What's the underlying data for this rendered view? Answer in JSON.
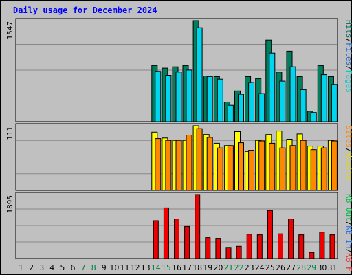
{
  "chart_data": {
    "type": "bar",
    "title": "Daily usage for December 2024",
    "categories": [
      "1",
      "2",
      "3",
      "4",
      "5",
      "6",
      "7",
      "8",
      "9",
      "10",
      "11",
      "12",
      "13",
      "14",
      "15",
      "16",
      "17",
      "18",
      "19",
      "20",
      "21",
      "22",
      "23",
      "24",
      "25",
      "26",
      "27",
      "28",
      "29",
      "30",
      "31"
    ],
    "weekend_days": [
      "7",
      "8",
      "14",
      "15",
      "21",
      "22",
      "28",
      "29"
    ],
    "panels": [
      {
        "name": "hits-files-pages",
        "max_label": "1547",
        "ymax": 1547,
        "legend": [
          "Pages",
          "/",
          "Files",
          "/",
          "Hits"
        ],
        "legend_colors": [
          "#00cccc",
          "#000000",
          "#2266cc",
          "#000000",
          "#006f5a"
        ],
        "series": [
          {
            "name": "Hits",
            "color": "#007f5f",
            "values": [
              0,
              0,
              0,
              0,
              0,
              0,
              0,
              0,
              0,
              0,
              0,
              0,
              0,
              860,
              820,
              840,
              860,
              1547,
              700,
              690,
              300,
              470,
              690,
              660,
              1250,
              760,
              1080,
              690,
              160,
              860,
              690
            ]
          },
          {
            "name": "Files",
            "color": "#00d4ee",
            "values": [
              0,
              0,
              0,
              0,
              0,
              0,
              0,
              0,
              0,
              0,
              0,
              0,
              0,
              770,
              710,
              760,
              790,
              1440,
              690,
              650,
              250,
              420,
              600,
              430,
              1050,
              620,
              840,
              490,
              140,
              720,
              570
            ]
          }
        ]
      },
      {
        "name": "visits-sites",
        "max_label": "111",
        "ymax": 111,
        "legend": [
          "Visits",
          "/",
          "Sites"
        ],
        "legend_colors": [
          "#dddd00",
          "#000000",
          "#ff8800"
        ],
        "series": [
          {
            "name": "Visits",
            "color": "#ffff00",
            "values": [
              0,
              0,
              0,
              0,
              0,
              0,
              0,
              0,
              0,
              0,
              0,
              0,
              0,
              100,
              90,
              86,
              86,
              111,
              96,
              81,
              77,
              101,
              67,
              86,
              96,
              102,
              88,
              97,
              76,
              76,
              86
            ]
          },
          {
            "name": "Sites",
            "color": "#ff8800",
            "values": [
              0,
              0,
              0,
              0,
              0,
              0,
              0,
              0,
              0,
              0,
              0,
              0,
              0,
              89,
              86,
              86,
              95,
              106,
              91,
              73,
              77,
              82,
              69,
              85,
              81,
              73,
              77,
              86,
              70,
              73,
              85
            ]
          }
        ]
      },
      {
        "name": "kb",
        "max_label": "1895",
        "ymax": 1895,
        "legend": [
          "KB F",
          "/",
          "KB In",
          "/",
          "KB Out"
        ],
        "legend_colors": [
          "#ee2222",
          "#000000",
          "#3377dd",
          "#000000",
          "#00bb44"
        ],
        "series": [
          {
            "name": "KB F",
            "color": "#ee0000",
            "values": [
              0,
              0,
              0,
              0,
              0,
              0,
              0,
              0,
              0,
              0,
              0,
              0,
              0,
              1120,
              1500,
              1170,
              950,
              1895,
              620,
              600,
              330,
              360,
              720,
              700,
              1420,
              730,
              1170,
              700,
              180,
              780,
              700
            ]
          }
        ]
      }
    ]
  }
}
